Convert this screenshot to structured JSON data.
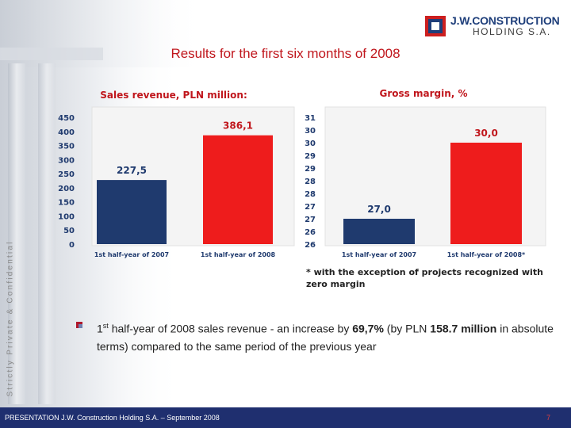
{
  "logo": {
    "line1": "J.W.CONSTRUCTION",
    "line2": "HOLDING S.A."
  },
  "title": "Results for the first six months of 2008",
  "side_text": "Strictly Private & Confidential",
  "footnote": "* with the exception of projects recognized with zero margin",
  "bullet": {
    "ordinal": "1",
    "ordinal_suffix": "st",
    "part1": " half-year of 2008 sales revenue - an increase by ",
    "pct": "69,7%",
    "part2": " (by PLN ",
    "amount": "158.7 million",
    "part3": " in absolute terms) compared to the same period of the previous year"
  },
  "footer": {
    "text": "PRESENTATION J.W. Construction Holding S.A. – September 2008",
    "page": "7"
  },
  "colors": {
    "navy": "#1f3a6e",
    "red": "#ee1c1c",
    "title_red": "#c0161c",
    "footer_bg": "#1f2f6f"
  },
  "chart_data": [
    {
      "type": "bar",
      "title": "Sales revenue, PLN million:",
      "categories": [
        "1st half-year of 2007",
        "1st half-year of 2008"
      ],
      "values": [
        227.5,
        386.1
      ],
      "value_labels": [
        "227,5",
        "386,1"
      ],
      "ylim": [
        0,
        450
      ],
      "yticks": [
        "0",
        "50",
        "100",
        "150",
        "200",
        "250",
        "300",
        "350",
        "400",
        "450"
      ],
      "bar_colors": [
        "#1f3a6e",
        "#ee1c1c"
      ],
      "grid": false
    },
    {
      "type": "bar",
      "title": "Gross margin, %",
      "categories": [
        "1st half-year of 2007",
        "1st half-year of 2008*"
      ],
      "values": [
        27.0,
        30.0
      ],
      "value_labels": [
        "27,0",
        "30,0"
      ],
      "ylim": [
        26,
        31
      ],
      "yticks": [
        "26",
        "26",
        "27",
        "27",
        "28",
        "28",
        "29",
        "29",
        "30",
        "30",
        "31"
      ],
      "bar_colors": [
        "#1f3a6e",
        "#ee1c1c"
      ],
      "grid": false
    }
  ]
}
